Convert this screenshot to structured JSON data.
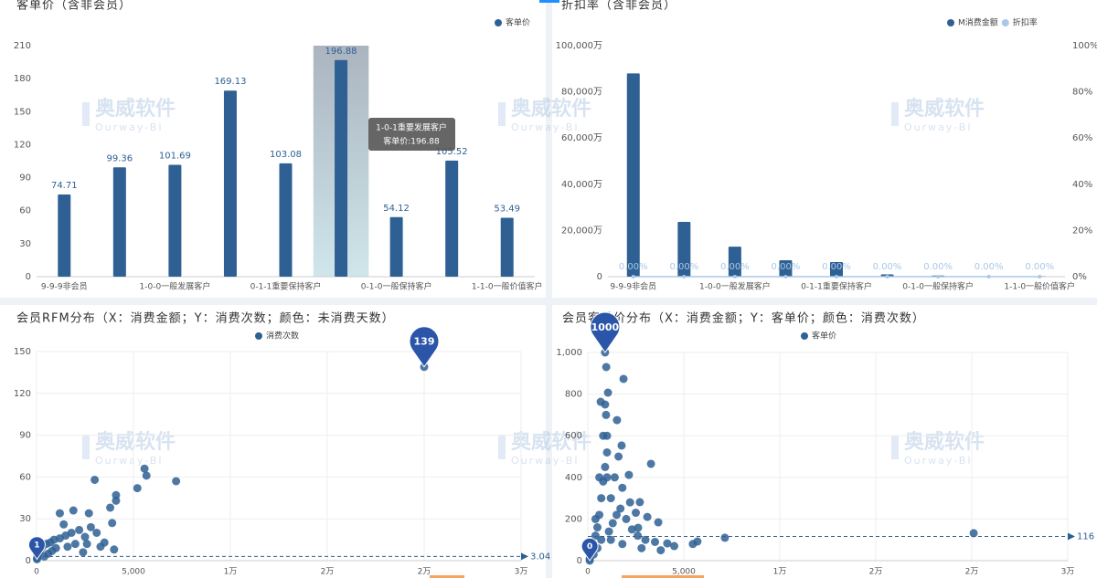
{
  "watermark": {
    "name": "奥威软件",
    "en": "Ourway-BI"
  },
  "chart_data": [
    {
      "type": "bar",
      "title": "客单价（含非会员）",
      "categories": [
        "9-9-9非会员",
        null,
        "1-0-0一般发展客户",
        null,
        "0-1-1重要保持客户",
        null,
        "0-1-0一般保持客户",
        null,
        "1-1-0一般价值客户"
      ],
      "series": [
        {
          "name": "客单价",
          "color": "#2f6094",
          "values": [
            74.71,
            99.36,
            101.69,
            169.13,
            103.08,
            196.88,
            54.12,
            105.52,
            53.49
          ]
        }
      ],
      "ylim": [
        0,
        210
      ],
      "yticks": [
        0,
        30,
        60,
        90,
        120,
        150,
        180,
        210
      ],
      "grid": false,
      "tooltip": {
        "title": "1-0-1重要发展客户",
        "text": "客单价:196.88"
      }
    },
    {
      "type": "bar-line",
      "title": "折扣率（含非会员）",
      "categories": [
        "9-9-9非会员",
        null,
        "1-0-0一般发展客户",
        null,
        "0-1-1重要保持客户",
        null,
        "0-1-0一般保持客户",
        null,
        "1-1-0一般价值客户"
      ],
      "series": [
        {
          "name": "M消费金额",
          "color": "#2f6094",
          "values": [
            88000,
            23700,
            13000,
            7100,
            6300,
            1000,
            500,
            200,
            100
          ]
        },
        {
          "name": "折扣率",
          "color": "#a9c8e8",
          "axis": "y2",
          "values": [
            0,
            0,
            0,
            0,
            0,
            0,
            0,
            0,
            0
          ],
          "value_labels": [
            "0.00%",
            "0.00%",
            "0.00%",
            "0.00%",
            "0.00%",
            "0.00%",
            "0.00%",
            "0.00%",
            "0.00%"
          ]
        }
      ],
      "ylim": [
        0,
        100000
      ],
      "yticks": [
        0,
        {
          "value": 20000,
          "label": "20,000万"
        },
        {
          "value": 40000,
          "label": "40,000万"
        },
        {
          "value": 60000,
          "label": "60,000万"
        },
        {
          "value": 80000,
          "label": "80,000万"
        },
        {
          "value": 100000,
          "label": "100,000万"
        }
      ],
      "y2lim": [
        0,
        100
      ],
      "y2ticks": [
        {
          "value": 0,
          "label": "0%"
        },
        {
          "value": 20,
          "label": "20%"
        },
        {
          "value": 40,
          "label": "40%"
        },
        {
          "value": 60,
          "label": "60%"
        },
        {
          "value": 80,
          "label": "80%"
        },
        {
          "value": 100,
          "label": "100%"
        }
      ],
      "grid": false
    },
    {
      "type": "scatter",
      "title": "会员RFM分布（X：消费金额；Y：消费次数；颜色：未消费天数）",
      "series": [
        {
          "name": "消费次数",
          "color": "#2f6094",
          "x": [
            5570,
            5670,
            7200,
            5200,
            4100,
            4100,
            3000,
            3800,
            2700,
            1900,
            1200,
            3900,
            2800,
            2200,
            1800,
            1500,
            1200,
            900,
            700,
            500,
            300,
            200,
            100,
            50,
            30,
            2500,
            3100,
            3500,
            2000,
            1600,
            1000,
            800,
            600,
            400,
            3300,
            4000,
            2400,
            20000,
            1400,
            2600,
            20
          ],
          "values": [
            66,
            61,
            57,
            52,
            47,
            43,
            58,
            38,
            34,
            36,
            34,
            27,
            24,
            22,
            20,
            18,
            16,
            15,
            13,
            12,
            10,
            8,
            6,
            4,
            2,
            17,
            20,
            13,
            12,
            10,
            9,
            7,
            5,
            3,
            10,
            8,
            6,
            139,
            26,
            12,
            1
          ]
        }
      ],
      "xlim": [
        0,
        25000
      ],
      "xticks": [
        0,
        {
          "value": 5000,
          "label": "5,000"
        },
        {
          "value": 10000,
          "label": "1万"
        },
        {
          "value": 15000,
          "label": "2万"
        },
        {
          "value": 20000,
          "label": "2万"
        },
        {
          "value": 25000,
          "label": "3万"
        }
      ],
      "ylim": [
        0,
        150
      ],
      "yticks": [
        0,
        30,
        60,
        90,
        120,
        150
      ],
      "grid": true,
      "average": 3.04
    },
    {
      "type": "scatter",
      "title": "会员客单价分布（X：消费金额；Y：客单价；颜色：消费次数）",
      "series": [
        {
          "name": "客单价",
          "color": "#2f6094",
          "x": [
            200,
            300,
            400,
            500,
            600,
            700,
            800,
            900,
            1000,
            1000,
            950,
            900,
            300,
            500,
            700,
            1100,
            1300,
            1500,
            1700,
            2000,
            2300,
            2600,
            3000,
            3500,
            1200,
            1400,
            1600,
            1800,
            2200,
            2500,
            100,
            400,
            600,
            800,
            1000,
            1200,
            1800,
            2800,
            3800,
            4500,
            670,
            960,
            1050,
            1860,
            1760,
            1520,
            3290,
            2140,
            2710,
            3100,
            3670,
            2620,
            4140,
            5470,
            5710,
            7140,
            20100,
            900,
            100
          ],
          "values": [
            40,
            80,
            120,
            160,
            220,
            300,
            380,
            450,
            520,
            600,
            700,
            750,
            30,
            60,
            100,
            140,
            180,
            220,
            250,
            200,
            150,
            120,
            100,
            90,
            300,
            400,
            500,
            350,
            280,
            230,
            10,
            200,
            400,
            600,
            400,
            100,
            80,
            60,
            50,
            70,
            763,
            930,
            807,
            873,
            553,
            675,
            465,
            412,
            281,
            210,
            184,
            158,
            83,
            80,
            92,
            110,
            132,
            1000,
            0
          ]
        }
      ],
      "xlim": [
        0,
        25000
      ],
      "xticks": [
        0,
        {
          "value": 5000,
          "label": "5,000"
        },
        {
          "value": 10000,
          "label": "1万"
        },
        {
          "value": 15000,
          "label": "2万"
        },
        {
          "value": 20000,
          "label": "2万"
        },
        {
          "value": 25000,
          "label": "3万"
        }
      ],
      "ylim": [
        0,
        1000
      ],
      "yticks": [
        0,
        200,
        400,
        600,
        800,
        {
          "value": 1000,
          "label": "1,000"
        }
      ],
      "grid": true,
      "average": 116
    }
  ]
}
